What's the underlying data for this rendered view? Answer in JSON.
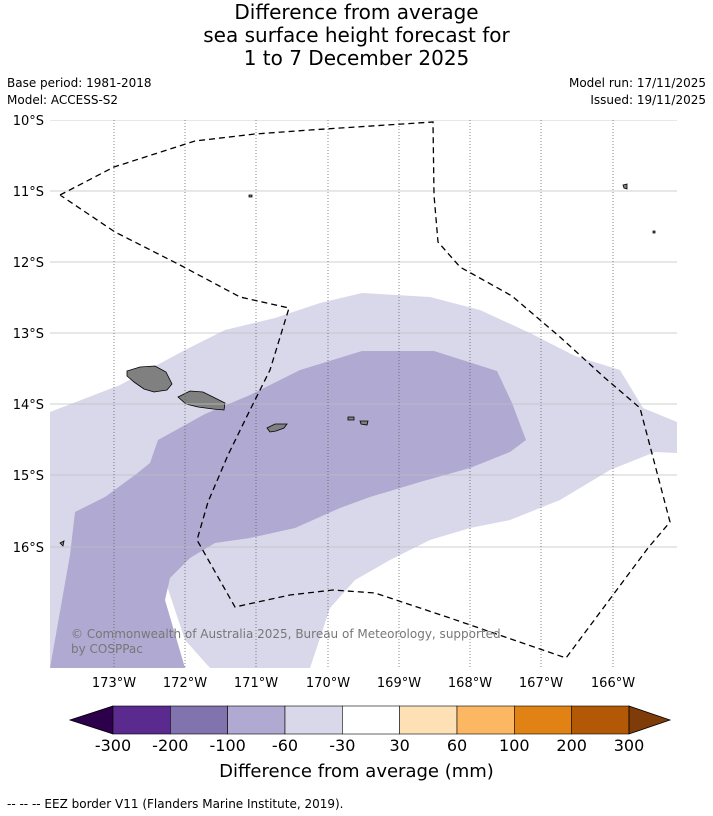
{
  "title": {
    "line1": "Difference from average",
    "line2": "sea surface height forecast for",
    "line3": "1 to 7 December 2025"
  },
  "meta": {
    "base_period": "Base period: 1981-2018",
    "model": "Model: ACCESS-S2",
    "model_run": "Model run: 17/11/2025",
    "issued": "Issued: 19/11/2025"
  },
  "map": {
    "lat_labels": [
      "10°S",
      "11°S",
      "12°S",
      "13°S",
      "14°S",
      "15°S",
      "16°S"
    ],
    "lon_labels": [
      "173°W",
      "172°W",
      "171°W",
      "170°W",
      "169°W",
      "168°W",
      "167°W",
      "166°W"
    ],
    "copyright": "© Commonwealth of Australia 2025, Bureau of Meteorology, supported by COSPPac",
    "colors": {
      "band_minus60_minus30": "#d9d8ea",
      "band_minus100_minus60": "#b0a9d1",
      "land": "#808080",
      "eez_line": "#000000"
    }
  },
  "colorbar": {
    "ticks": [
      "-300",
      "-200",
      "-100",
      "-60",
      "-30",
      "30",
      "60",
      "100",
      "200",
      "300"
    ],
    "colors": [
      "#2d004b",
      "#5a2a8e",
      "#8073ae",
      "#b0a9d1",
      "#d9d8ea",
      "#ffffff",
      "#fde0b6",
      "#fbb762",
      "#e08214",
      "#b35806",
      "#7f3b08"
    ],
    "label": "Difference from average (mm)"
  },
  "footer": "--  --  -- EEZ border V11 (Flanders Marine Institute, 2019)."
}
